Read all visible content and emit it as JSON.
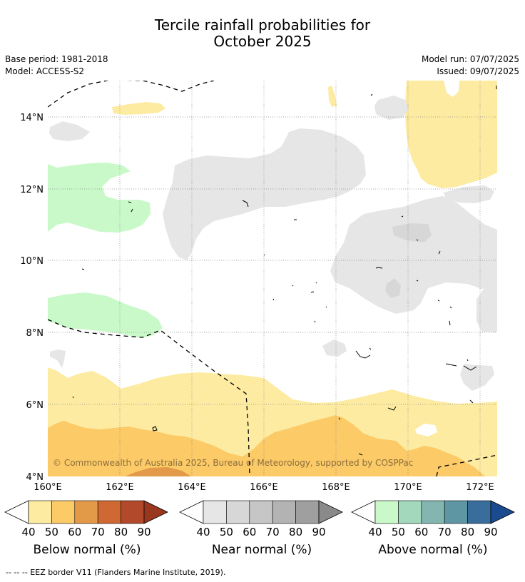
{
  "header": {
    "title_line1": "Tercile rainfall probabilities for",
    "title_line2": "October 2025",
    "base_period": "Base period: 1981-2018",
    "model": "Model: ACCESS-S2",
    "model_run": "Model run: 07/07/2025",
    "issued": "Issued: 09/07/2025"
  },
  "chart_data": {
    "type": "heatmap",
    "x_ticks": [
      "160°E",
      "162°E",
      "164°E",
      "166°E",
      "168°E",
      "170°E",
      "172°E"
    ],
    "y_ticks": [
      "14°N",
      "12°N",
      "10°N",
      "8°N",
      "6°N",
      "4°N"
    ],
    "x_range": [
      160,
      172.5
    ],
    "y_range": [
      4,
      15
    ],
    "grid": true,
    "copyright": "© Commonwealth of Australia 2025, Bureau of Meteorology, supported by COSPPac",
    "colorbars": [
      {
        "name": "Below normal (%)",
        "ticks": [
          "40",
          "50",
          "60",
          "70",
          "80",
          "90"
        ],
        "colors": [
          "#fdeba1",
          "#fcca67",
          "#e39a48",
          "#d06833",
          "#b3492b",
          "#99371f"
        ]
      },
      {
        "name": "Near normal (%)",
        "ticks": [
          "40",
          "50",
          "60",
          "70",
          "80",
          "90"
        ],
        "colors": [
          "#e6e6e6",
          "#d7d7d7",
          "#c6c6c6",
          "#b3b3b3",
          "#9f9f9f",
          "#8a8a8a"
        ]
      },
      {
        "name": "Above normal (%)",
        "ticks": [
          "40",
          "50",
          "60",
          "70",
          "80",
          "90"
        ],
        "colors": [
          "#c9f9c9",
          "#a3d8bd",
          "#83b6b0",
          "#5f96a3",
          "#386d9c",
          "#1a4a8f"
        ]
      }
    ]
  },
  "footnote": "--  --  -- EEZ border V11 (Flanders Marine Institute, 2019)."
}
